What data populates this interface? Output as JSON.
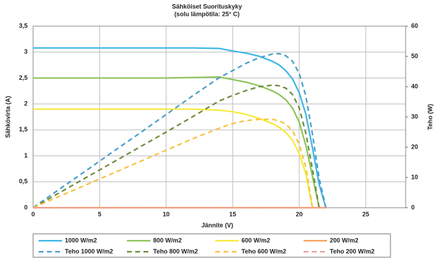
{
  "chart_data": {
    "type": "line",
    "title": "Sähköiset Suorituskyky",
    "subtitle": "(solu lämpötila: 25° C)",
    "x_label": "Jännite (V)",
    "y_label": "Sähkövirta (A)",
    "y2_label": "Teho (W)",
    "x": [
      0,
      2,
      4,
      6,
      8,
      10,
      12,
      14,
      15,
      16,
      17,
      18,
      18.5,
      19,
      19.5,
      20,
      20.5,
      21,
      21.5,
      22
    ],
    "xlim": [
      0,
      28
    ],
    "xticks": [
      0,
      5,
      10,
      15,
      20,
      25
    ],
    "ylim": [
      0,
      3.5
    ],
    "yticks": [
      0,
      {
        "value": 0.5,
        "label": "0,5"
      },
      1,
      {
        "value": 1.5,
        "label": "1,5"
      },
      2,
      {
        "value": 2.5,
        "label": "2,5"
      },
      3,
      {
        "value": 3.5,
        "label": "3,5"
      }
    ],
    "y2lim": [
      0,
      60
    ],
    "y2ticks": [
      0,
      10,
      20,
      30,
      40,
      50,
      60
    ],
    "grid": true,
    "legend": "bottom",
    "series": [
      {
        "name": "1000 W/m2",
        "color": "#3db5e6",
        "dashed": false,
        "values": [
          3.08,
          3.08,
          3.08,
          3.08,
          3.08,
          3.08,
          3.08,
          3.07,
          3.02,
          2.98,
          2.92,
          2.82,
          2.75,
          2.64,
          2.48,
          2.22,
          1.8,
          1.15,
          0.45,
          0
        ]
      },
      {
        "name": "800 W/m2",
        "color": "#8dc35a",
        "dashed": false,
        "values": [
          2.5,
          2.5,
          2.5,
          2.5,
          2.5,
          2.5,
          2.51,
          2.52,
          2.47,
          2.42,
          2.35,
          2.25,
          2.18,
          2.08,
          1.92,
          1.65,
          1.2,
          0.6,
          0,
          null
        ]
      },
      {
        "name": "600 W/m2",
        "color": "#f7ea3a",
        "dashed": false,
        "values": [
          1.9,
          1.9,
          1.9,
          1.9,
          1.9,
          1.9,
          1.9,
          1.88,
          1.85,
          1.8,
          1.72,
          1.62,
          1.55,
          1.45,
          1.3,
          1.05,
          0.65,
          0,
          null,
          null
        ]
      },
      {
        "name": "200 W/m2",
        "color": "#f2a25e",
        "dashed": false,
        "values": [
          0,
          0,
          0,
          0,
          0,
          0,
          0,
          0,
          0,
          0,
          0,
          0,
          0,
          0,
          0,
          0,
          0,
          0,
          0,
          0
        ]
      },
      {
        "name": "Teho 1000 W/m2",
        "color": "#4a9ec9",
        "dashed": true,
        "axis": "y2",
        "values": [
          0,
          6.2,
          12.3,
          18.5,
          24.6,
          30.8,
          37,
          43,
          45.3,
          47.7,
          49.6,
          50.8,
          50.9,
          50.2,
          48.4,
          44.4,
          36.9,
          24.2,
          9.7,
          0
        ]
      },
      {
        "name": "Teho 800 W/m2",
        "color": "#6f8c3d",
        "dashed": true,
        "axis": "y2",
        "values": [
          0,
          5,
          10,
          15,
          20,
          25,
          30.1,
          35.3,
          37.1,
          38.7,
          40,
          40.5,
          40.3,
          39.5,
          37.4,
          33,
          24.6,
          12.6,
          0,
          null
        ]
      },
      {
        "name": "Teho 600 W/m2",
        "color": "#f8c242",
        "dashed": true,
        "axis": "y2",
        "values": [
          0,
          3.8,
          7.6,
          11.4,
          15.2,
          19,
          22.8,
          26.3,
          27.8,
          28.8,
          29.2,
          29.2,
          28.7,
          27.6,
          25.4,
          21,
          13.3,
          0,
          null,
          null
        ]
      },
      {
        "name": "Teho 200 W/m2",
        "color": "#e8a0a0",
        "dashed": true,
        "axis": "y2",
        "values": [
          0,
          0,
          0,
          0,
          0,
          0,
          0,
          0,
          0,
          0,
          0,
          0,
          0,
          0,
          0,
          0,
          0,
          0,
          0,
          0
        ]
      }
    ]
  }
}
